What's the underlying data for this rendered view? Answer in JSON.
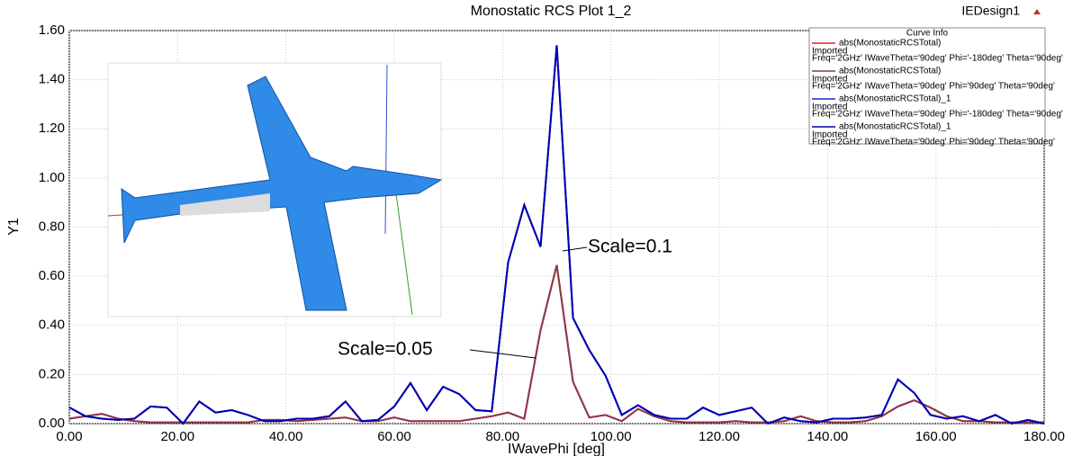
{
  "chart_data": {
    "type": "line",
    "title": "Monostatic RCS Plot 1_2",
    "design": "IEDesign1",
    "x_label": "IWavePhi [deg]",
    "y_label": "Y1",
    "legend_title": "Curve Info",
    "x": [
      0,
      3,
      6,
      9,
      12,
      15,
      18,
      21,
      24,
      27,
      30,
      33,
      36,
      39,
      42,
      45,
      48,
      51,
      54,
      57,
      60,
      63,
      66,
      69,
      72,
      75,
      78,
      81,
      84,
      87,
      90,
      93,
      96,
      99,
      102,
      105,
      108,
      111,
      114,
      117,
      120,
      123,
      126,
      129,
      132,
      135,
      138,
      141,
      144,
      147,
      150,
      153,
      156,
      159,
      162,
      165,
      168,
      171,
      174,
      177,
      180
    ],
    "series": [
      {
        "name": "abs(MonostaticRCSTotal)",
        "details": [
          "Imported",
          "Freq='2GHz' IWaveTheta='90deg' Phi='-180deg' Theta='90deg'"
        ],
        "color": "#e02020",
        "values": [
          0.02,
          0.03,
          0.04,
          0.02,
          0.01,
          0.005,
          0.005,
          0.005,
          0.005,
          0.005,
          0.005,
          0.005,
          0.015,
          0.015,
          0.01,
          0.015,
          0.02,
          0.025,
          0.01,
          0.01,
          0.025,
          0.01,
          0.01,
          0.01,
          0.01,
          0.02,
          0.03,
          0.045,
          0.02,
          0.38,
          0.645,
          0.17,
          0.025,
          0.035,
          0.01,
          0.06,
          0.03,
          0.01,
          0.005,
          0.005,
          0.005,
          0.01,
          0.005,
          0.005,
          0.01,
          0.03,
          0.01,
          0.005,
          0.005,
          0.01,
          0.03,
          0.07,
          0.095,
          0.065,
          0.03,
          0.01,
          0.01,
          0.005,
          0.005,
          0.005,
          0.005
        ]
      },
      {
        "name": "abs(MonostaticRCSTotal)",
        "details": [
          "Imported",
          "Freq='2GHz' IWaveTheta='90deg' Phi='90deg' Theta='90deg'"
        ],
        "color": "#8b3a4a",
        "values": [
          0.02,
          0.03,
          0.04,
          0.02,
          0.01,
          0.005,
          0.005,
          0.005,
          0.005,
          0.005,
          0.005,
          0.005,
          0.015,
          0.015,
          0.01,
          0.015,
          0.02,
          0.025,
          0.01,
          0.01,
          0.025,
          0.01,
          0.01,
          0.01,
          0.01,
          0.02,
          0.03,
          0.045,
          0.02,
          0.38,
          0.645,
          0.17,
          0.025,
          0.035,
          0.01,
          0.06,
          0.03,
          0.01,
          0.005,
          0.005,
          0.005,
          0.01,
          0.005,
          0.005,
          0.01,
          0.03,
          0.01,
          0.005,
          0.005,
          0.01,
          0.03,
          0.07,
          0.095,
          0.065,
          0.03,
          0.01,
          0.01,
          0.005,
          0.005,
          0.005,
          0.005
        ]
      },
      {
        "name": "abs(MonostaticRCSTotal)_1",
        "details": [
          "Imported",
          "Freq='2GHz' IWaveTheta='90deg' Phi='-180deg' Theta='90deg'"
        ],
        "color": "#2020c8",
        "values": [
          0.066,
          0.03,
          0.02,
          0.015,
          0.02,
          0.07,
          0.065,
          0,
          0.09,
          0.045,
          0.055,
          0.035,
          0.01,
          0.01,
          0.02,
          0.02,
          0.03,
          0.09,
          0.01,
          0.015,
          0.07,
          0.165,
          0.055,
          0.15,
          0.12,
          0.055,
          0.05,
          0.655,
          0.89,
          0.72,
          1.54,
          0.43,
          0.3,
          0.195,
          0.035,
          0.075,
          0.035,
          0.02,
          0.02,
          0.065,
          0.035,
          0.05,
          0.065,
          0,
          0.025,
          0.01,
          0.005,
          0.02,
          0.02,
          0.025,
          0.035,
          0.18,
          0.125,
          0.035,
          0.02,
          0.03,
          0.01,
          0.035,
          0,
          0.015,
          0
        ]
      },
      {
        "name": "abs(MonostaticRCSTotal)_1",
        "details": [
          "Imported",
          "Freq='2GHz' IWaveTheta='90deg' Phi='90deg' Theta='90deg'"
        ],
        "color": "#0000b0",
        "values": [
          0.066,
          0.03,
          0.02,
          0.015,
          0.02,
          0.07,
          0.065,
          0,
          0.09,
          0.045,
          0.055,
          0.035,
          0.01,
          0.01,
          0.02,
          0.02,
          0.03,
          0.09,
          0.01,
          0.015,
          0.07,
          0.165,
          0.055,
          0.15,
          0.12,
          0.055,
          0.05,
          0.655,
          0.89,
          0.72,
          1.54,
          0.43,
          0.3,
          0.195,
          0.035,
          0.075,
          0.035,
          0.02,
          0.02,
          0.065,
          0.035,
          0.05,
          0.065,
          0,
          0.025,
          0.01,
          0.005,
          0.02,
          0.02,
          0.025,
          0.035,
          0.18,
          0.125,
          0.035,
          0.02,
          0.03,
          0.01,
          0.035,
          0,
          0.015,
          0
        ]
      }
    ],
    "xlim": [
      0,
      180
    ],
    "xticks": [
      {
        "value": 0,
        "label": "0.00"
      },
      {
        "value": 20,
        "label": "20.00"
      },
      {
        "value": 40,
        "label": "40.00"
      },
      {
        "value": 60,
        "label": "60.00"
      },
      {
        "value": 80,
        "label": "80.00"
      },
      {
        "value": 100,
        "label": "100.00"
      },
      {
        "value": 120,
        "label": "120.00"
      },
      {
        "value": 140,
        "label": "140.00"
      },
      {
        "value": 160,
        "label": "160.00"
      },
      {
        "value": 180,
        "label": "180.00"
      }
    ],
    "ylim": [
      0,
      1.6
    ],
    "yticks": [
      {
        "value": 0,
        "label": "0.00"
      },
      {
        "value": 0.2,
        "label": "0.20"
      },
      {
        "value": 0.4,
        "label": "0.40"
      },
      {
        "value": 0.6,
        "label": "0.60"
      },
      {
        "value": 0.8,
        "label": "0.80"
      },
      {
        "value": 1,
        "label": "1.00"
      },
      {
        "value": 1.2,
        "label": "1.20"
      },
      {
        "value": 1.4,
        "label": "1.40"
      },
      {
        "value": 1.6,
        "label": "1.60"
      }
    ],
    "grid": true,
    "annotations": [
      {
        "text": "Scale=0.1"
      },
      {
        "text": "Scale=0.05"
      }
    ]
  }
}
